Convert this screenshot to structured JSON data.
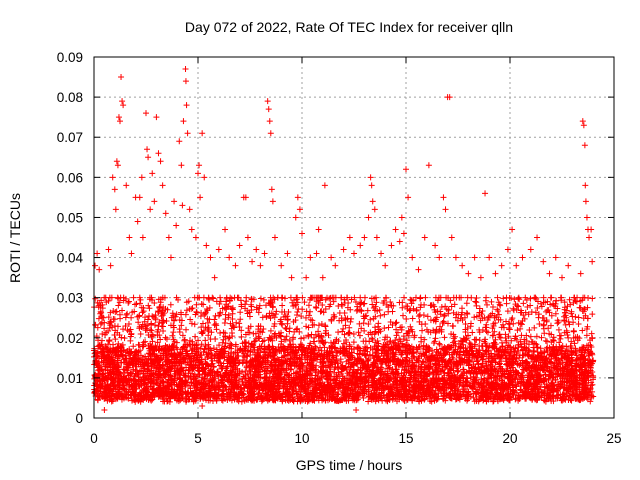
{
  "chart_data": {
    "type": "scatter",
    "title": "Day 072 of 2022, Rate Of TEC Index for receiver qlln",
    "xlabel": "GPS time / hours",
    "ylabel": "ROTI / TECUs",
    "xlim": [
      0,
      25
    ],
    "ylim": [
      0,
      0.09
    ],
    "xticks": [
      0,
      5,
      10,
      15,
      20,
      25
    ],
    "xtick_labels": [
      "0",
      "5",
      "10",
      "15",
      "20",
      "25"
    ],
    "yticks": [
      0,
      0.01,
      0.02,
      0.03,
      0.04,
      0.05,
      0.06,
      0.07,
      0.08,
      0.09
    ],
    "ytick_labels": [
      "0",
      "0.01",
      "0.02",
      "0.03",
      "0.04",
      "0.05",
      "0.06",
      "0.07",
      "0.08",
      "0.09"
    ],
    "grid": true,
    "marker": "plus",
    "color": "#ff0000",
    "series": [
      {
        "name": "ROTI",
        "points": [
          [
            0.05,
            0.038
          ],
          [
            0.15,
            0.041
          ],
          [
            0.25,
            0.037
          ],
          [
            0.3,
            0.026
          ],
          [
            0.45,
            0.025
          ],
          [
            0.5,
            0.002
          ],
          [
            0.7,
            0.042
          ],
          [
            0.8,
            0.038
          ],
          [
            0.9,
            0.06
          ],
          [
            1.0,
            0.057
          ],
          [
            1.05,
            0.052
          ],
          [
            1.1,
            0.064
          ],
          [
            1.15,
            0.063
          ],
          [
            1.2,
            0.075
          ],
          [
            1.25,
            0.074
          ],
          [
            1.3,
            0.085
          ],
          [
            1.35,
            0.079
          ],
          [
            1.4,
            0.078
          ],
          [
            1.55,
            0.058
          ],
          [
            1.7,
            0.045
          ],
          [
            1.8,
            0.041
          ],
          [
            2.0,
            0.055
          ],
          [
            2.1,
            0.049
          ],
          [
            2.2,
            0.055
          ],
          [
            2.3,
            0.06
          ],
          [
            2.35,
            0.045
          ],
          [
            2.5,
            0.076
          ],
          [
            2.55,
            0.067
          ],
          [
            2.6,
            0.065
          ],
          [
            2.7,
            0.052
          ],
          [
            2.8,
            0.061
          ],
          [
            2.9,
            0.054
          ],
          [
            3.0,
            0.075
          ],
          [
            3.1,
            0.066
          ],
          [
            3.2,
            0.064
          ],
          [
            3.3,
            0.058
          ],
          [
            3.45,
            0.051
          ],
          [
            3.6,
            0.045
          ],
          [
            3.7,
            0.04
          ],
          [
            3.85,
            0.054
          ],
          [
            3.95,
            0.048
          ],
          [
            4.1,
            0.069
          ],
          [
            4.2,
            0.063
          ],
          [
            4.25,
            0.053
          ],
          [
            4.3,
            0.074
          ],
          [
            4.4,
            0.087
          ],
          [
            4.42,
            0.084
          ],
          [
            4.45,
            0.078
          ],
          [
            4.5,
            0.071
          ],
          [
            4.6,
            0.052
          ],
          [
            4.7,
            0.047
          ],
          [
            4.9,
            0.045
          ],
          [
            5.0,
            0.061
          ],
          [
            5.05,
            0.063
          ],
          [
            5.1,
            0.055
          ],
          [
            5.2,
            0.071
          ],
          [
            5.3,
            0.06
          ],
          [
            5.4,
            0.043
          ],
          [
            5.6,
            0.04
          ],
          [
            5.8,
            0.035
          ],
          [
            5.2,
            0.003
          ],
          [
            6.0,
            0.042
          ],
          [
            6.3,
            0.047
          ],
          [
            6.5,
            0.04
          ],
          [
            6.8,
            0.038
          ],
          [
            7.0,
            0.043
          ],
          [
            7.2,
            0.055
          ],
          [
            7.3,
            0.055
          ],
          [
            7.4,
            0.045
          ],
          [
            7.6,
            0.039
          ],
          [
            7.8,
            0.042
          ],
          [
            8.0,
            0.038
          ],
          [
            8.2,
            0.041
          ],
          [
            8.35,
            0.079
          ],
          [
            8.4,
            0.077
          ],
          [
            8.45,
            0.074
          ],
          [
            8.5,
            0.071
          ],
          [
            8.55,
            0.057
          ],
          [
            8.6,
            0.054
          ],
          [
            8.7,
            0.045
          ],
          [
            9.0,
            0.038
          ],
          [
            9.3,
            0.041
          ],
          [
            9.5,
            0.035
          ],
          [
            9.7,
            0.05
          ],
          [
            9.8,
            0.055
          ],
          [
            9.9,
            0.052
          ],
          [
            10.0,
            0.046
          ],
          [
            10.2,
            0.035
          ],
          [
            10.4,
            0.04
          ],
          [
            10.7,
            0.041
          ],
          [
            10.8,
            0.047
          ],
          [
            11.0,
            0.035
          ],
          [
            11.1,
            0.058
          ],
          [
            11.4,
            0.04
          ],
          [
            11.6,
            0.038
          ],
          [
            12.0,
            0.042
          ],
          [
            12.3,
            0.045
          ],
          [
            12.5,
            0.041
          ],
          [
            12.6,
            0.002
          ],
          [
            12.8,
            0.043
          ],
          [
            13.0,
            0.045
          ],
          [
            13.2,
            0.05
          ],
          [
            13.3,
            0.06
          ],
          [
            13.35,
            0.058
          ],
          [
            13.4,
            0.054
          ],
          [
            13.5,
            0.052
          ],
          [
            13.6,
            0.045
          ],
          [
            13.8,
            0.041
          ],
          [
            14.0,
            0.038
          ],
          [
            14.3,
            0.043
          ],
          [
            14.5,
            0.047
          ],
          [
            14.7,
            0.044
          ],
          [
            14.8,
            0.05
          ],
          [
            14.9,
            0.046
          ],
          [
            15.0,
            0.062
          ],
          [
            15.1,
            0.055
          ],
          [
            15.3,
            0.04
          ],
          [
            15.6,
            0.037
          ],
          [
            15.9,
            0.045
          ],
          [
            16.1,
            0.063
          ],
          [
            16.4,
            0.043
          ],
          [
            16.6,
            0.04
          ],
          [
            16.8,
            0.055
          ],
          [
            16.9,
            0.052
          ],
          [
            17.0,
            0.08
          ],
          [
            17.1,
            0.08
          ],
          [
            17.2,
            0.045
          ],
          [
            17.4,
            0.04
          ],
          [
            17.7,
            0.038
          ],
          [
            18.0,
            0.036
          ],
          [
            18.3,
            0.04
          ],
          [
            18.6,
            0.035
          ],
          [
            18.8,
            0.056
          ],
          [
            19.0,
            0.04
          ],
          [
            19.3,
            0.036
          ],
          [
            19.6,
            0.038
          ],
          [
            19.9,
            0.042
          ],
          [
            20.1,
            0.047
          ],
          [
            20.3,
            0.038
          ],
          [
            20.6,
            0.04
          ],
          [
            21.0,
            0.042
          ],
          [
            21.3,
            0.045
          ],
          [
            21.6,
            0.039
          ],
          [
            21.9,
            0.036
          ],
          [
            22.2,
            0.04
          ],
          [
            22.5,
            0.035
          ],
          [
            22.8,
            0.038
          ],
          [
            23.1,
            0.03
          ],
          [
            23.4,
            0.036
          ],
          [
            23.5,
            0.074
          ],
          [
            23.55,
            0.073
          ],
          [
            23.6,
            0.068
          ],
          [
            23.62,
            0.058
          ],
          [
            23.65,
            0.054
          ],
          [
            23.7,
            0.05
          ],
          [
            23.75,
            0.047
          ],
          [
            23.8,
            0.045
          ],
          [
            23.9,
            0.047
          ],
          [
            23.95,
            0.039
          ]
        ],
        "band_extremes": {
          "description": "dense background band of values between about 0.005 and 0.03 over 0-24 h",
          "min": 0.004,
          "max": 0.03
        }
      }
    ]
  }
}
